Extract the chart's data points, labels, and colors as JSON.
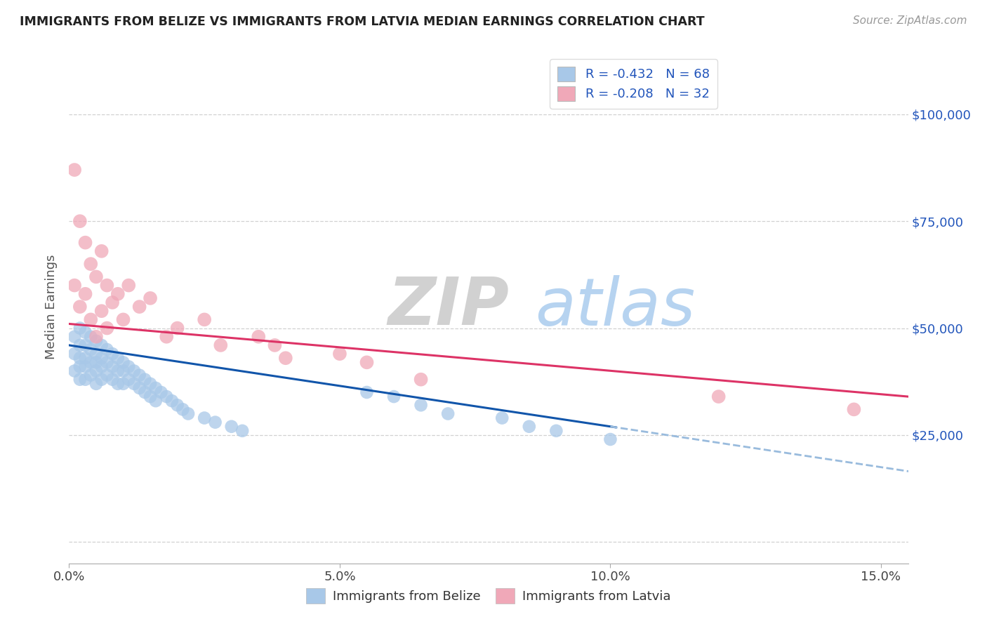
{
  "title": "IMMIGRANTS FROM BELIZE VS IMMIGRANTS FROM LATVIA MEDIAN EARNINGS CORRELATION CHART",
  "source_text": "Source: ZipAtlas.com",
  "ylabel": "Median Earnings",
  "xlim": [
    0.0,
    0.155
  ],
  "ylim": [
    -5000,
    115000
  ],
  "yticks": [
    0,
    25000,
    50000,
    75000,
    100000
  ],
  "ytick_labels": [
    "",
    "$25,000",
    "$50,000",
    "$75,000",
    "$100,000"
  ],
  "xticks": [
    0.0,
    0.05,
    0.1,
    0.15
  ],
  "xtick_labels": [
    "0.0%",
    "5.0%",
    "10.0%",
    "15.0%"
  ],
  "belize_color": "#A8C8E8",
  "latvia_color": "#F0A8B8",
  "legend_R_label1": "R = -0.432   N = 68",
  "legend_R_label2": "R = -0.208   N = 32",
  "belize_line_color": "#1155AA",
  "latvia_line_color": "#DD3366",
  "dashed_line_color": "#99BBDD",
  "belize_x": [
    0.001,
    0.001,
    0.001,
    0.002,
    0.002,
    0.002,
    0.002,
    0.002,
    0.003,
    0.003,
    0.003,
    0.003,
    0.003,
    0.004,
    0.004,
    0.004,
    0.004,
    0.005,
    0.005,
    0.005,
    0.005,
    0.005,
    0.006,
    0.006,
    0.006,
    0.006,
    0.007,
    0.007,
    0.007,
    0.008,
    0.008,
    0.008,
    0.009,
    0.009,
    0.009,
    0.01,
    0.01,
    0.01,
    0.011,
    0.011,
    0.012,
    0.012,
    0.013,
    0.013,
    0.014,
    0.014,
    0.015,
    0.015,
    0.016,
    0.016,
    0.017,
    0.018,
    0.019,
    0.02,
    0.021,
    0.022,
    0.025,
    0.027,
    0.03,
    0.032,
    0.055,
    0.06,
    0.065,
    0.07,
    0.08,
    0.085,
    0.09,
    0.1
  ],
  "belize_y": [
    48000,
    44000,
    40000,
    50000,
    46000,
    43000,
    41000,
    38000,
    49000,
    46000,
    43000,
    41000,
    38000,
    48000,
    45000,
    42000,
    39000,
    47000,
    44000,
    42000,
    40000,
    37000,
    46000,
    43000,
    41000,
    38000,
    45000,
    42000,
    39000,
    44000,
    41000,
    38000,
    43000,
    40000,
    37000,
    42000,
    40000,
    37000,
    41000,
    38000,
    40000,
    37000,
    39000,
    36000,
    38000,
    35000,
    37000,
    34000,
    36000,
    33000,
    35000,
    34000,
    33000,
    32000,
    31000,
    30000,
    29000,
    28000,
    27000,
    26000,
    35000,
    34000,
    32000,
    30000,
    29000,
    27000,
    26000,
    24000
  ],
  "latvia_x": [
    0.001,
    0.001,
    0.002,
    0.002,
    0.003,
    0.003,
    0.004,
    0.004,
    0.005,
    0.005,
    0.006,
    0.006,
    0.007,
    0.007,
    0.008,
    0.009,
    0.01,
    0.011,
    0.013,
    0.015,
    0.018,
    0.02,
    0.025,
    0.028,
    0.035,
    0.038,
    0.04,
    0.05,
    0.055,
    0.065,
    0.12,
    0.145
  ],
  "latvia_y": [
    87000,
    60000,
    75000,
    55000,
    70000,
    58000,
    65000,
    52000,
    62000,
    48000,
    68000,
    54000,
    60000,
    50000,
    56000,
    58000,
    52000,
    60000,
    55000,
    57000,
    48000,
    50000,
    52000,
    46000,
    48000,
    46000,
    43000,
    44000,
    42000,
    38000,
    34000,
    31000
  ]
}
